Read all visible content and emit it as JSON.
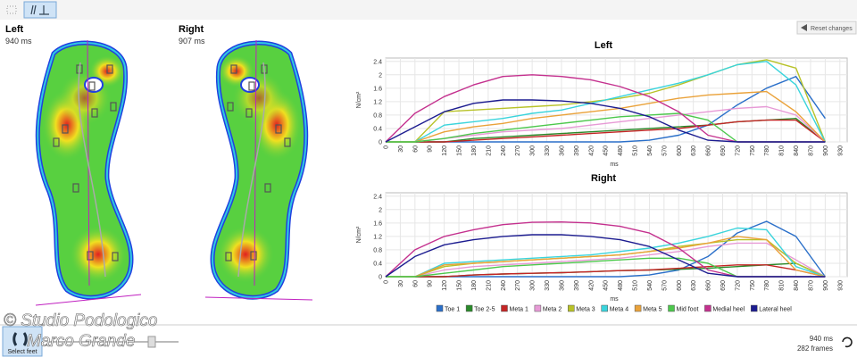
{
  "feet": {
    "left": {
      "label": "Left",
      "duration": "940 ms"
    },
    "right": {
      "label": "Right",
      "duration": "907 ms"
    }
  },
  "reset_button": "Reset changes",
  "watermark": [
    "© Studio Podologico",
    "Marco Grande"
  ],
  "footer": {
    "select_feet": "Select feet",
    "time": "940 ms",
    "frames": "282 frames"
  },
  "chart_data": [
    {
      "type": "line",
      "title": "Left",
      "xlabel": "ms",
      "ylabel": "N/cm²",
      "x": [
        0,
        60,
        120,
        180,
        240,
        300,
        360,
        420,
        480,
        540,
        600,
        660,
        720,
        780,
        840,
        900
      ],
      "xlim": [
        0,
        945
      ],
      "xticks": [
        0,
        30,
        60,
        90,
        120,
        150,
        180,
        210,
        240,
        270,
        300,
        330,
        360,
        390,
        420,
        450,
        480,
        510,
        540,
        570,
        600,
        630,
        660,
        690,
        720,
        750,
        780,
        810,
        840,
        870,
        900,
        930
      ],
      "ylim": [
        0,
        2.5
      ],
      "yticks": [
        0,
        0.4,
        0.8,
        1.2,
        1.6,
        2,
        2.4
      ],
      "grid": true,
      "series": [
        {
          "name": "Toe 1",
          "color": "#2a6fc9",
          "values": [
            0,
            0,
            0,
            0,
            0,
            0,
            0,
            0,
            0,
            0.05,
            0.2,
            0.5,
            1.1,
            1.6,
            1.95,
            0.7
          ]
        },
        {
          "name": "Toe 2-5",
          "color": "#2a8a2a",
          "values": [
            0,
            0,
            0,
            0.1,
            0.15,
            0.2,
            0.25,
            0.3,
            0.35,
            0.4,
            0.45,
            0.5,
            0.6,
            0.65,
            0.7,
            0
          ]
        },
        {
          "name": "Meta 1",
          "color": "#c42525",
          "values": [
            0,
            0,
            0,
            0.05,
            0.1,
            0.15,
            0.2,
            0.25,
            0.3,
            0.35,
            0.4,
            0.5,
            0.6,
            0.65,
            0.65,
            0
          ]
        },
        {
          "name": "Meta 2",
          "color": "#e79ad6",
          "values": [
            0,
            0,
            0.1,
            0.2,
            0.3,
            0.35,
            0.4,
            0.5,
            0.6,
            0.7,
            0.8,
            0.9,
            1.0,
            1.05,
            0.8,
            0
          ]
        },
        {
          "name": "Meta 3",
          "color": "#b8c228",
          "values": [
            0,
            0,
            0.9,
            0.95,
            1.0,
            1.05,
            1.1,
            1.2,
            1.3,
            1.45,
            1.7,
            2.0,
            2.3,
            2.45,
            2.2,
            0
          ]
        },
        {
          "name": "Meta 4",
          "color": "#3ad4dc",
          "values": [
            0,
            0,
            0.5,
            0.6,
            0.7,
            0.85,
            0.95,
            1.15,
            1.35,
            1.55,
            1.75,
            2.0,
            2.3,
            2.4,
            1.7,
            0
          ]
        },
        {
          "name": "Meta 5",
          "color": "#eaa23a",
          "values": [
            0,
            0,
            0.3,
            0.45,
            0.55,
            0.7,
            0.8,
            0.9,
            1.0,
            1.15,
            1.3,
            1.4,
            1.45,
            1.5,
            0.9,
            0
          ]
        },
        {
          "name": "Mid foot",
          "color": "#4cc84c",
          "values": [
            0,
            0,
            0.1,
            0.25,
            0.35,
            0.45,
            0.55,
            0.65,
            0.75,
            0.8,
            0.85,
            0.65,
            0,
            0,
            0,
            0
          ]
        },
        {
          "name": "Medial heel",
          "color": "#c4308e",
          "values": [
            0,
            0.85,
            1.35,
            1.7,
            1.95,
            2.0,
            1.95,
            1.85,
            1.65,
            1.35,
            0.9,
            0.2,
            0,
            0,
            0,
            0
          ]
        },
        {
          "name": "Lateral heel",
          "color": "#1c1c90",
          "values": [
            0,
            0.45,
            0.9,
            1.15,
            1.25,
            1.25,
            1.22,
            1.15,
            1.0,
            0.75,
            0.35,
            0.05,
            0,
            0,
            0,
            0
          ]
        }
      ]
    },
    {
      "type": "line",
      "title": "Right",
      "xlabel": "ms",
      "ylabel": "N/cm²",
      "x": [
        0,
        60,
        120,
        180,
        240,
        300,
        360,
        420,
        480,
        540,
        600,
        660,
        720,
        780,
        840,
        900
      ],
      "xlim": [
        0,
        945
      ],
      "xticks": [
        0,
        30,
        60,
        90,
        120,
        150,
        180,
        210,
        240,
        270,
        300,
        330,
        360,
        390,
        420,
        450,
        480,
        510,
        540,
        570,
        600,
        630,
        660,
        690,
        720,
        750,
        780,
        810,
        840,
        870,
        900,
        930
      ],
      "ylim": [
        0,
        2.5
      ],
      "yticks": [
        0,
        0.4,
        0.8,
        1.2,
        1.6,
        2,
        2.4
      ],
      "grid": true,
      "series": [
        {
          "color": "#2a6fc9",
          "values": [
            0,
            0,
            0,
            0,
            0,
            0,
            0,
            0,
            0,
            0.05,
            0.2,
            0.6,
            1.3,
            1.65,
            1.2,
            0
          ]
        },
        {
          "color": "#2a8a2a",
          "values": [
            0,
            0,
            0,
            0.05,
            0.08,
            0.1,
            0.12,
            0.15,
            0.18,
            0.2,
            0.22,
            0.25,
            0.3,
            0.35,
            0.4,
            0
          ]
        },
        {
          "color": "#c42525",
          "values": [
            0,
            0,
            0,
            0.05,
            0.08,
            0.1,
            0.12,
            0.15,
            0.18,
            0.2,
            0.25,
            0.3,
            0.35,
            0.35,
            0.2,
            0
          ]
        },
        {
          "color": "#e79ad6",
          "values": [
            0,
            0,
            0.2,
            0.3,
            0.35,
            0.4,
            0.45,
            0.5,
            0.55,
            0.65,
            0.75,
            0.9,
            1.0,
            1.0,
            0.5,
            0
          ]
        },
        {
          "color": "#b8c228",
          "values": [
            0,
            0,
            0.3,
            0.4,
            0.45,
            0.5,
            0.55,
            0.6,
            0.65,
            0.75,
            0.9,
            1.0,
            1.1,
            1.1,
            0.4,
            0
          ]
        },
        {
          "color": "#3ad4dc",
          "values": [
            0,
            0,
            0.4,
            0.45,
            0.5,
            0.55,
            0.6,
            0.65,
            0.75,
            0.85,
            1.0,
            1.2,
            1.45,
            1.4,
            0.3,
            0
          ]
        },
        {
          "color": "#eaa23a",
          "values": [
            0,
            0,
            0.35,
            0.4,
            0.45,
            0.5,
            0.55,
            0.6,
            0.65,
            0.75,
            0.85,
            1.0,
            1.2,
            1.1,
            0.2,
            0
          ]
        },
        {
          "color": "#4cc84c",
          "values": [
            0,
            0,
            0.1,
            0.2,
            0.3,
            0.35,
            0.4,
            0.45,
            0.5,
            0.55,
            0.55,
            0.4,
            0,
            0,
            0,
            0
          ]
        },
        {
          "color": "#c4308e",
          "values": [
            0,
            0.8,
            1.2,
            1.4,
            1.55,
            1.62,
            1.63,
            1.6,
            1.5,
            1.3,
            0.85,
            0.2,
            0,
            0,
            0,
            0
          ]
        },
        {
          "color": "#1c1c90",
          "values": [
            0,
            0.6,
            0.95,
            1.1,
            1.2,
            1.25,
            1.25,
            1.2,
            1.1,
            0.9,
            0.5,
            0.1,
            0,
            0,
            0,
            0
          ]
        }
      ]
    }
  ]
}
